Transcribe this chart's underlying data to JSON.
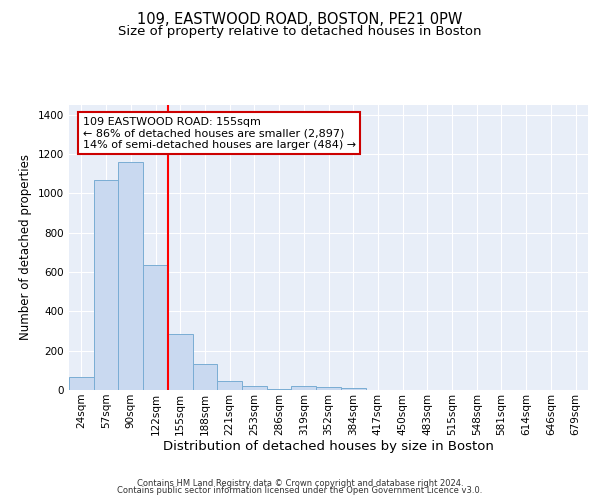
{
  "title1": "109, EASTWOOD ROAD, BOSTON, PE21 0PW",
  "title2": "Size of property relative to detached houses in Boston",
  "xlabel": "Distribution of detached houses by size in Boston",
  "ylabel": "Number of detached properties",
  "footer1": "Contains HM Land Registry data © Crown copyright and database right 2024.",
  "footer2": "Contains public sector information licensed under the Open Government Licence v3.0.",
  "categories": [
    "24sqm",
    "57sqm",
    "90sqm",
    "122sqm",
    "155sqm",
    "188sqm",
    "221sqm",
    "253sqm",
    "286sqm",
    "319sqm",
    "352sqm",
    "384sqm",
    "417sqm",
    "450sqm",
    "483sqm",
    "515sqm",
    "548sqm",
    "581sqm",
    "614sqm",
    "646sqm",
    "679sqm"
  ],
  "values": [
    65,
    1070,
    1160,
    635,
    285,
    130,
    45,
    20,
    5,
    20,
    15,
    10,
    0,
    0,
    0,
    0,
    0,
    0,
    0,
    0,
    0
  ],
  "bar_color": "#c9d9f0",
  "bar_edge_color": "#7aadd4",
  "red_line_x": 4,
  "annotation_line1": "109 EASTWOOD ROAD: 155sqm",
  "annotation_line2": "← 86% of detached houses are smaller (2,897)",
  "annotation_line3": "14% of semi-detached houses are larger (484) →",
  "ylim": [
    0,
    1450
  ],
  "yticks": [
    0,
    200,
    400,
    600,
    800,
    1000,
    1200,
    1400
  ],
  "fig_bg": "#ffffff",
  "plot_bg": "#e8eef8",
  "grid_color": "#ffffff",
  "title1_fontsize": 10.5,
  "title2_fontsize": 9.5,
  "xlabel_fontsize": 9.5,
  "ylabel_fontsize": 8.5,
  "tick_fontsize": 7.5,
  "annot_fontsize": 8.0,
  "footer_fontsize": 6.0
}
